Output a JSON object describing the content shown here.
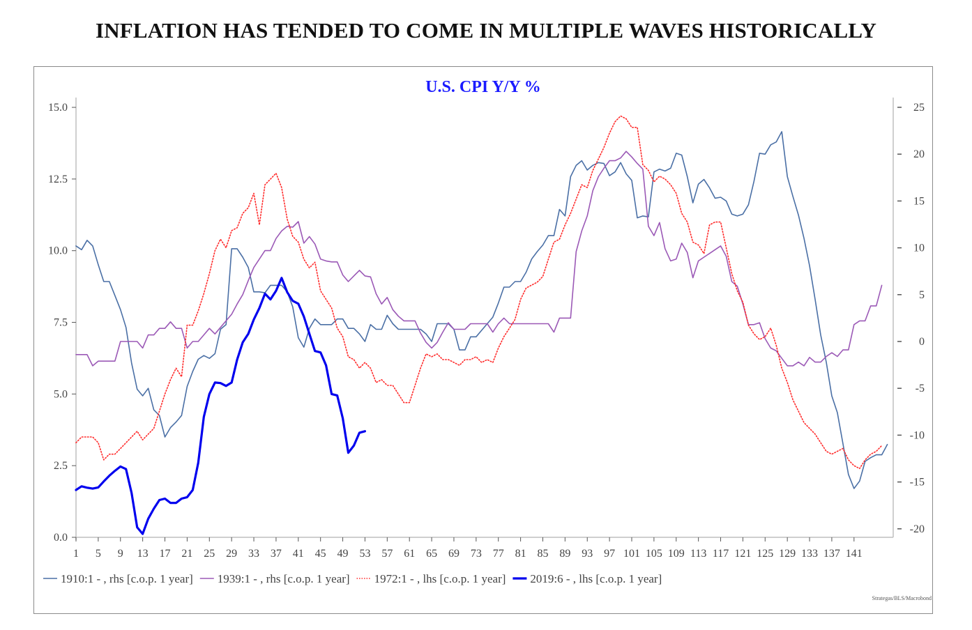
{
  "page_title": "INFLATION HAS TENDED TO COME IN MULTIPLE WAVES HISTORICALLY",
  "chart_data": {
    "type": "line",
    "title": "U.S. CPI Y/Y %",
    "source": "Strategas/BLS/Macrobond",
    "xlabel": "",
    "x_ticks": [
      "1",
      "5",
      "9",
      "13",
      "17",
      "21",
      "25",
      "29",
      "33",
      "37",
      "41",
      "45",
      "49",
      "53",
      "57",
      "61",
      "65",
      "69",
      "73",
      "77",
      "81",
      "85",
      "89",
      "93",
      "97",
      "101",
      "105",
      "109",
      "113",
      "117",
      "121",
      "125",
      "129",
      "133",
      "137",
      "141"
    ],
    "x_range": [
      1,
      145
    ],
    "left_axis": {
      "ylim": [
        0,
        15
      ],
      "ticks": [
        "0.0",
        "2.5",
        "5.0",
        "7.5",
        "10.0",
        "12.5",
        "15.0"
      ],
      "tick_values": [
        0,
        2.5,
        5,
        7.5,
        10,
        12.5,
        15
      ]
    },
    "right_axis": {
      "ylim": [
        -21,
        25.5
      ],
      "ticks": [
        "-20",
        "-15",
        "-10",
        "-5",
        "0",
        "5",
        "10",
        "15",
        "20",
        "25"
      ],
      "tick_values": [
        -20,
        -15,
        -10,
        -5,
        0,
        5,
        10,
        15,
        20,
        25
      ]
    },
    "grid": false,
    "legend_position": "bottom-left",
    "series": [
      {
        "name": "1910:1 - , rhs [c.o.p. 1 year]",
        "axis": "right",
        "color": "#4a6fa5",
        "style": "solid",
        "values": [
          10.2,
          9.8,
          10.8,
          10.2,
          8.2,
          6.4,
          6.4,
          4.9,
          3.4,
          1.5,
          -2.3,
          -5.1,
          -5.8,
          -5.0,
          -7.3,
          -7.9,
          -10.2,
          -9.2,
          -8.6,
          -7.9,
          -4.8,
          -3.2,
          -1.9,
          -1.5,
          -1.8,
          -1.3,
          1.3,
          1.8,
          9.9,
          9.9,
          9.0,
          7.9,
          5.3,
          5.3,
          5.2,
          6.0,
          6.0,
          6.0,
          5.3,
          3.7,
          0.4,
          -0.6,
          1.4,
          2.4,
          1.8,
          1.8,
          1.8,
          2.4,
          2.4,
          1.4,
          1.4,
          0.8,
          0.0,
          1.8,
          1.3,
          1.3,
          2.8,
          1.9,
          1.3,
          1.3,
          1.3,
          1.3,
          1.3,
          0.8,
          0.0,
          1.9,
          1.9,
          1.9,
          1.3,
          -0.9,
          -0.9,
          0.5,
          0.5,
          1.2,
          1.9,
          2.6,
          4.1,
          5.8,
          5.8,
          6.4,
          6.4,
          7.4,
          8.8,
          9.6,
          10.3,
          11.3,
          11.3,
          14.1,
          13.4,
          17.6,
          18.8,
          19.3,
          18.3,
          18.8,
          19.1,
          19.0,
          17.7,
          18.1,
          19.1,
          17.9,
          17.2,
          13.2,
          13.4,
          13.3,
          18.1,
          18.4,
          18.2,
          18.5,
          20.1,
          19.9,
          17.6,
          14.8,
          16.8,
          17.3,
          16.4,
          15.3,
          15.4,
          15.0,
          13.6,
          13.4,
          13.6,
          14.6,
          17.1,
          20.1,
          20.0,
          21.0,
          21.3,
          22.4,
          17.6,
          15.5,
          13.5,
          11.0,
          8.1,
          4.5,
          0.7,
          -2.2,
          -5.8,
          -7.6,
          -10.9,
          -14.2,
          -15.7,
          -14.9,
          -12.8,
          -12.4,
          -12.1,
          -12.1,
          -11.0
        ]
      },
      {
        "name": "1939:1 - , rhs [c.o.p. 1 year]",
        "axis": "right",
        "color": "#9b59b6",
        "style": "solid",
        "values": [
          -1.4,
          -1.4,
          -1.4,
          -2.6,
          -2.1,
          -2.1,
          -2.1,
          -2.1,
          0.0,
          0.0,
          0.0,
          0.0,
          -0.7,
          0.7,
          0.7,
          1.4,
          1.4,
          2.1,
          1.4,
          1.4,
          -0.7,
          0.0,
          0.0,
          0.7,
          1.4,
          0.8,
          1.5,
          2.2,
          2.9,
          4.0,
          5.0,
          6.5,
          7.9,
          8.8,
          9.7,
          9.7,
          11.0,
          11.8,
          12.3,
          12.2,
          12.8,
          10.5,
          11.2,
          10.4,
          8.8,
          8.6,
          8.5,
          8.5,
          7.1,
          6.4,
          7.0,
          7.6,
          7.0,
          6.9,
          5.1,
          4.0,
          4.7,
          3.4,
          2.7,
          2.2,
          2.2,
          2.2,
          0.9,
          -0.1,
          -0.7,
          -0.1,
          1.0,
          2.0,
          1.3,
          1.3,
          1.3,
          1.9,
          1.9,
          1.9,
          1.9,
          1.0,
          1.9,
          2.5,
          1.9,
          1.9,
          1.9,
          1.9,
          1.9,
          1.9,
          1.9,
          1.9,
          1.0,
          2.5,
          2.5,
          2.5,
          9.6,
          11.8,
          13.4,
          16.1,
          17.6,
          18.5,
          19.3,
          19.3,
          19.6,
          20.3,
          19.7,
          19.0,
          18.4,
          12.3,
          11.3,
          12.7,
          9.9,
          8.6,
          8.8,
          10.5,
          9.5,
          6.8,
          8.6,
          9.0,
          9.4,
          9.8,
          10.2,
          9.1,
          6.4,
          5.9,
          4.0,
          1.8,
          1.8,
          2.0,
          0.3,
          -0.7,
          -1.0,
          -1.8,
          -2.6,
          -2.6,
          -2.2,
          -2.6,
          -1.7,
          -2.2,
          -2.2,
          -1.6,
          -1.2,
          -1.6,
          -0.9,
          -0.9,
          1.8,
          2.2,
          2.2,
          3.8,
          3.8,
          6.0
        ]
      },
      {
        "name": "1972:1 - , lhs [c.o.p. 1 year]",
        "axis": "left",
        "color": "#ff2a2a",
        "style": "dotted",
        "values": [
          3.3,
          3.5,
          3.5,
          3.5,
          3.3,
          2.7,
          2.9,
          2.9,
          3.1,
          3.3,
          3.5,
          3.7,
          3.4,
          3.6,
          3.8,
          4.4,
          5.0,
          5.5,
          5.9,
          5.6,
          7.4,
          7.4,
          7.9,
          8.5,
          9.2,
          10.0,
          10.4,
          10.1,
          10.7,
          10.8,
          11.3,
          11.5,
          12.0,
          10.9,
          12.3,
          12.5,
          12.7,
          12.2,
          11.1,
          10.5,
          10.3,
          9.7,
          9.4,
          9.6,
          8.6,
          8.3,
          8.0,
          7.3,
          7.0,
          6.3,
          6.2,
          5.9,
          6.1,
          5.9,
          5.4,
          5.5,
          5.3,
          5.3,
          5.0,
          4.7,
          4.7,
          5.3,
          5.9,
          6.4,
          6.3,
          6.4,
          6.2,
          6.2,
          6.1,
          6.0,
          6.2,
          6.2,
          6.3,
          6.1,
          6.2,
          6.1,
          6.6,
          7.0,
          7.3,
          7.6,
          8.3,
          8.7,
          8.8,
          8.9,
          9.1,
          9.7,
          10.3,
          10.4,
          10.9,
          11.3,
          11.8,
          12.3,
          12.2,
          12.8,
          13.2,
          13.6,
          14.1,
          14.5,
          14.7,
          14.6,
          14.3,
          14.3,
          13.0,
          12.8,
          12.4,
          12.6,
          12.5,
          12.3,
          12.0,
          11.3,
          11.0,
          10.3,
          10.2,
          9.9,
          10.9,
          11.0,
          11.0,
          10.1,
          9.2,
          8.6,
          8.2,
          7.4,
          7.1,
          6.9,
          7.0,
          7.3,
          6.7,
          5.9,
          5.4,
          4.8,
          4.4,
          4.0,
          3.8,
          3.6,
          3.3,
          3.0,
          2.9,
          3.0,
          3.1,
          2.7,
          2.5,
          2.4,
          2.7,
          2.9,
          3.0,
          3.2
        ]
      },
      {
        "name": "2019:6 - , lhs [c.o.p. 1 year]",
        "axis": "left",
        "color": "#0000ee",
        "style": "thick",
        "values": [
          1.65,
          1.78,
          1.73,
          1.7,
          1.74,
          1.95,
          2.15,
          2.32,
          2.47,
          2.38,
          1.55,
          0.35,
          0.12,
          0.65,
          1.0,
          1.3,
          1.35,
          1.2,
          1.2,
          1.35,
          1.4,
          1.65,
          2.6,
          4.2,
          5.0,
          5.4,
          5.38,
          5.28,
          5.4,
          6.2,
          6.8,
          7.1,
          7.6,
          8.0,
          8.5,
          8.3,
          8.6,
          9.05,
          8.55,
          8.25,
          8.15,
          7.7,
          7.1,
          6.5,
          6.45,
          6.0,
          5.0,
          4.95,
          4.15,
          2.95,
          3.2,
          3.65,
          3.7
        ]
      }
    ]
  },
  "legend": [
    {
      "label": "1910:1 - , rhs [c.o.p. 1 year]",
      "color": "#4a6fa5",
      "style": "solid"
    },
    {
      "label": "1939:1 - , rhs [c.o.p. 1 year]",
      "color": "#9b59b6",
      "style": "solid"
    },
    {
      "label": "1972:1 - , lhs [c.o.p. 1 year]",
      "color": "#ff2a2a",
      "style": "dotted"
    },
    {
      "label": "2019:6 - , lhs [c.o.p. 1 year]",
      "color": "#0000ee",
      "style": "thick"
    }
  ],
  "colors": {
    "title": "#111111",
    "chart_title": "#1a1aff",
    "axis": "#bfbfbf",
    "tick_text": "#444444"
  }
}
